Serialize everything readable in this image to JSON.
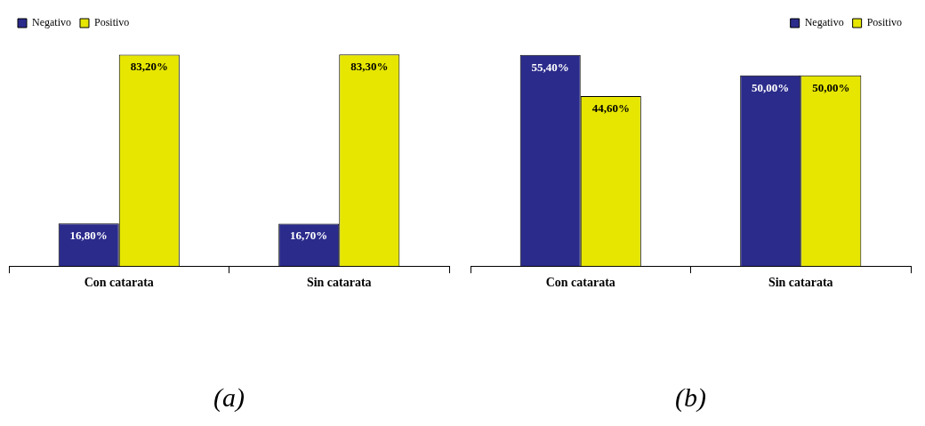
{
  "chart_data": [
    {
      "type": "bar",
      "categories": [
        "Con catarata",
        "Sin catarata"
      ],
      "legend": "top left",
      "annotations": [
        "(a)"
      ],
      "series": [
        {
          "name": "Negativo",
          "color": "#2b2b8c",
          "values": [
            16.8,
            16.7
          ],
          "value_labels": [
            "16,80%",
            "16,70%"
          ]
        },
        {
          "name": "Positivo",
          "color": "#e6e600",
          "values": [
            83.2,
            83.3
          ],
          "value_labels": [
            "83,20%",
            "83,30%"
          ]
        }
      ]
    },
    {
      "type": "bar",
      "categories": [
        "Con catarata",
        "Sin catarata"
      ],
      "legend": "top right",
      "annotations": [
        "(b)"
      ],
      "series": [
        {
          "name": "Negativo",
          "color": "#2b2b8c",
          "values": [
            55.4,
            50.0
          ],
          "value_labels": [
            "55,40%",
            "50,00%"
          ]
        },
        {
          "name": "Positivo",
          "color": "#e6e600",
          "values": [
            44.6,
            50.0
          ],
          "value_labels": [
            "44,60%",
            "50,00%"
          ]
        }
      ]
    }
  ]
}
